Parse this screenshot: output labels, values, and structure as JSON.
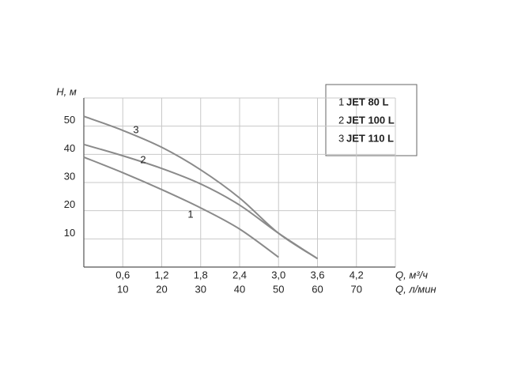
{
  "chart_data": {
    "type": "line",
    "y_label": "H, м",
    "x_label": "Q, м³/ч",
    "x2_label": "Q, л/мин",
    "x": [
      0,
      0.6,
      1.2,
      1.8,
      2.4,
      3.0,
      3.6
    ],
    "xlim": [
      0,
      4.8
    ],
    "xticks": [
      {
        "value": 0.6,
        "label": "0,6"
      },
      {
        "value": 1.2,
        "label": "1,2"
      },
      {
        "value": 1.8,
        "label": "1,8"
      },
      {
        "value": 2.4,
        "label": "2,4"
      },
      {
        "value": 3.0,
        "label": "3,0"
      },
      {
        "value": 3.6,
        "label": "3,6"
      },
      {
        "value": 4.2,
        "label": "4,2"
      }
    ],
    "x2lim": [
      0,
      80
    ],
    "x2ticks": [
      10,
      20,
      30,
      40,
      50,
      60,
      70
    ],
    "ylim": [
      0,
      60
    ],
    "yticks": [
      10,
      20,
      30,
      40,
      50
    ],
    "grid": true,
    "legend_position": "upper right",
    "series": [
      {
        "name": "JET 80 L",
        "label": "1",
        "color": "#8a8a8a",
        "values": [
          39,
          33.5,
          27.5,
          21,
          13.5,
          3.5,
          null
        ]
      },
      {
        "name": "JET 100 L",
        "label": "2",
        "color": "#8a8a8a",
        "values": [
          43.5,
          39.5,
          35,
          29.5,
          22,
          12,
          3
        ]
      },
      {
        "name": "JET 110 L",
        "label": "3",
        "color": "#8a8a8a",
        "values": [
          53.5,
          48.5,
          42.5,
          34.5,
          24.5,
          12,
          3
        ]
      }
    ]
  }
}
